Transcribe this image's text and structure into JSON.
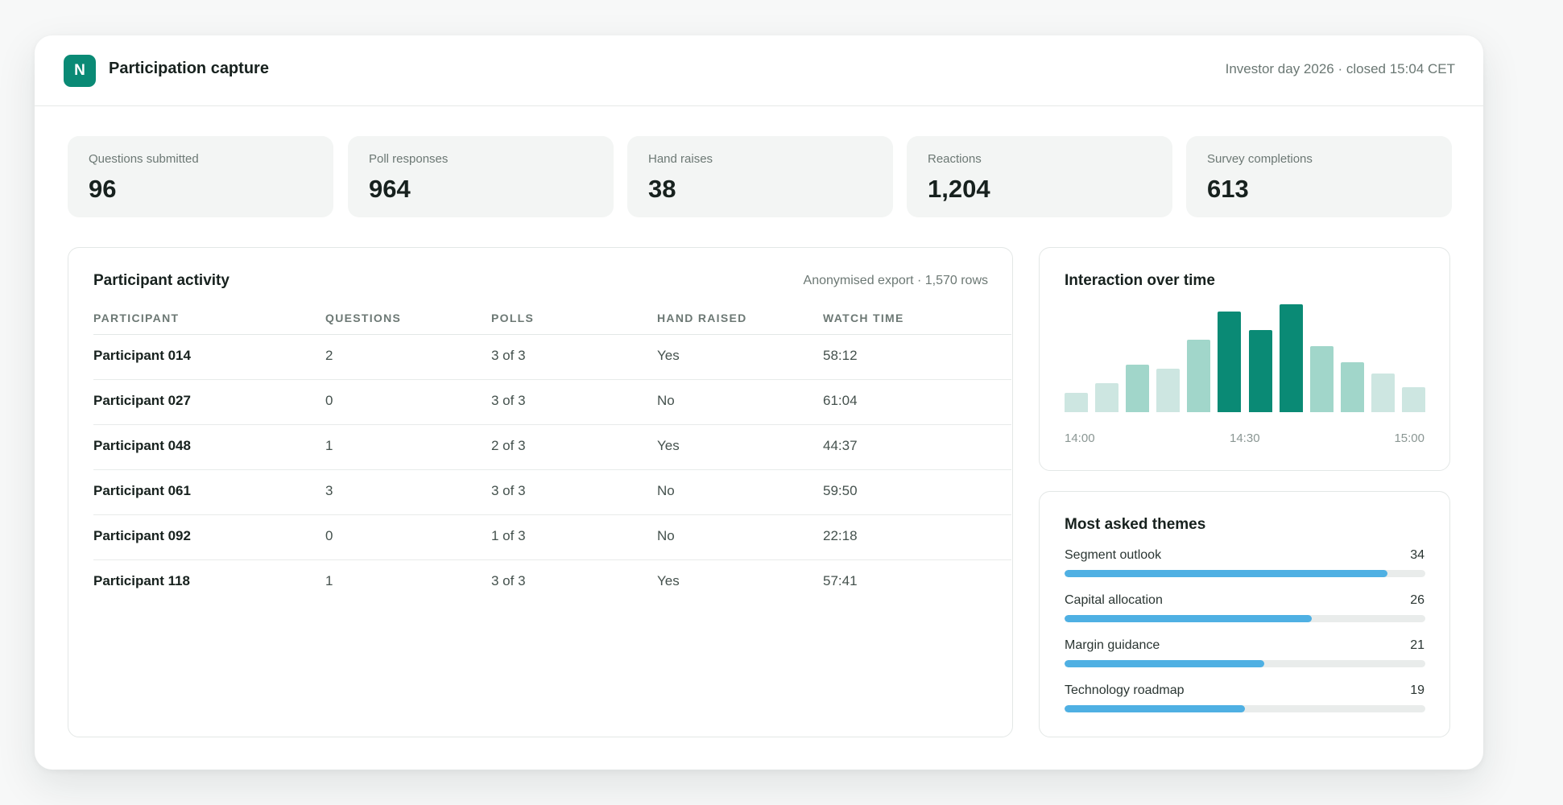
{
  "header": {
    "logo_letter": "N",
    "title": "Participation capture",
    "meta": "Investor day 2026 · closed 15:04 CET"
  },
  "stats": [
    {
      "label": "Questions submitted",
      "value": "96"
    },
    {
      "label": "Poll responses",
      "value": "964"
    },
    {
      "label": "Hand raises",
      "value": "38"
    },
    {
      "label": "Reactions",
      "value": "1,204"
    },
    {
      "label": "Survey completions",
      "value": "613"
    }
  ],
  "activity": {
    "title": "Participant activity",
    "meta": "Anonymised export · 1,570 rows",
    "columns": [
      "PARTICIPANT",
      "QUESTIONS",
      "POLLS",
      "HAND RAISED",
      "WATCH TIME"
    ],
    "rows": [
      {
        "participant": "Participant 014",
        "questions": "2",
        "polls": "3 of 3",
        "hand_raised": "Yes",
        "watch_time": "58:12"
      },
      {
        "participant": "Participant 027",
        "questions": "0",
        "polls": "3 of 3",
        "hand_raised": "No",
        "watch_time": "61:04"
      },
      {
        "participant": "Participant 048",
        "questions": "1",
        "polls": "2 of 3",
        "hand_raised": "Yes",
        "watch_time": "44:37"
      },
      {
        "participant": "Participant 061",
        "questions": "3",
        "polls": "3 of 3",
        "hand_raised": "No",
        "watch_time": "59:50"
      },
      {
        "participant": "Participant 092",
        "questions": "0",
        "polls": "1 of 3",
        "hand_raised": "No",
        "watch_time": "22:18"
      },
      {
        "participant": "Participant 118",
        "questions": "1",
        "polls": "3 of 3",
        "hand_raised": "Yes",
        "watch_time": "57:41"
      }
    ]
  },
  "interaction": {
    "title": "Interaction over time",
    "colors": {
      "light": "#cde6e1",
      "mid": "#a1d6ca",
      "strong": "#0a8a75"
    }
  },
  "chart_data": {
    "type": "bar",
    "title": "Interaction over time",
    "x_tick_labels": [
      "14:00",
      "14:30",
      "15:00"
    ],
    "values": [
      0.18,
      0.27,
      0.44,
      0.4,
      0.67,
      0.93,
      0.76,
      1.0,
      0.61,
      0.46,
      0.36,
      0.23
    ],
    "intensity": [
      "light",
      "light",
      "mid",
      "light",
      "mid",
      "strong",
      "strong",
      "strong",
      "mid",
      "mid",
      "light",
      "light"
    ],
    "ylim": [
      0,
      1
    ],
    "y_axis": "hidden",
    "grid": false
  },
  "themes": {
    "title": "Most asked themes",
    "max": 38,
    "items": [
      {
        "label": "Segment outlook",
        "count": 34
      },
      {
        "label": "Capital allocation",
        "count": 26
      },
      {
        "label": "Margin guidance",
        "count": 21
      },
      {
        "label": "Technology roadmap",
        "count": 19
      }
    ],
    "bar_color": "#4fb0e3"
  },
  "colors": {
    "accent": "#0a8a75",
    "theme_bar": "#4fb0e3"
  }
}
